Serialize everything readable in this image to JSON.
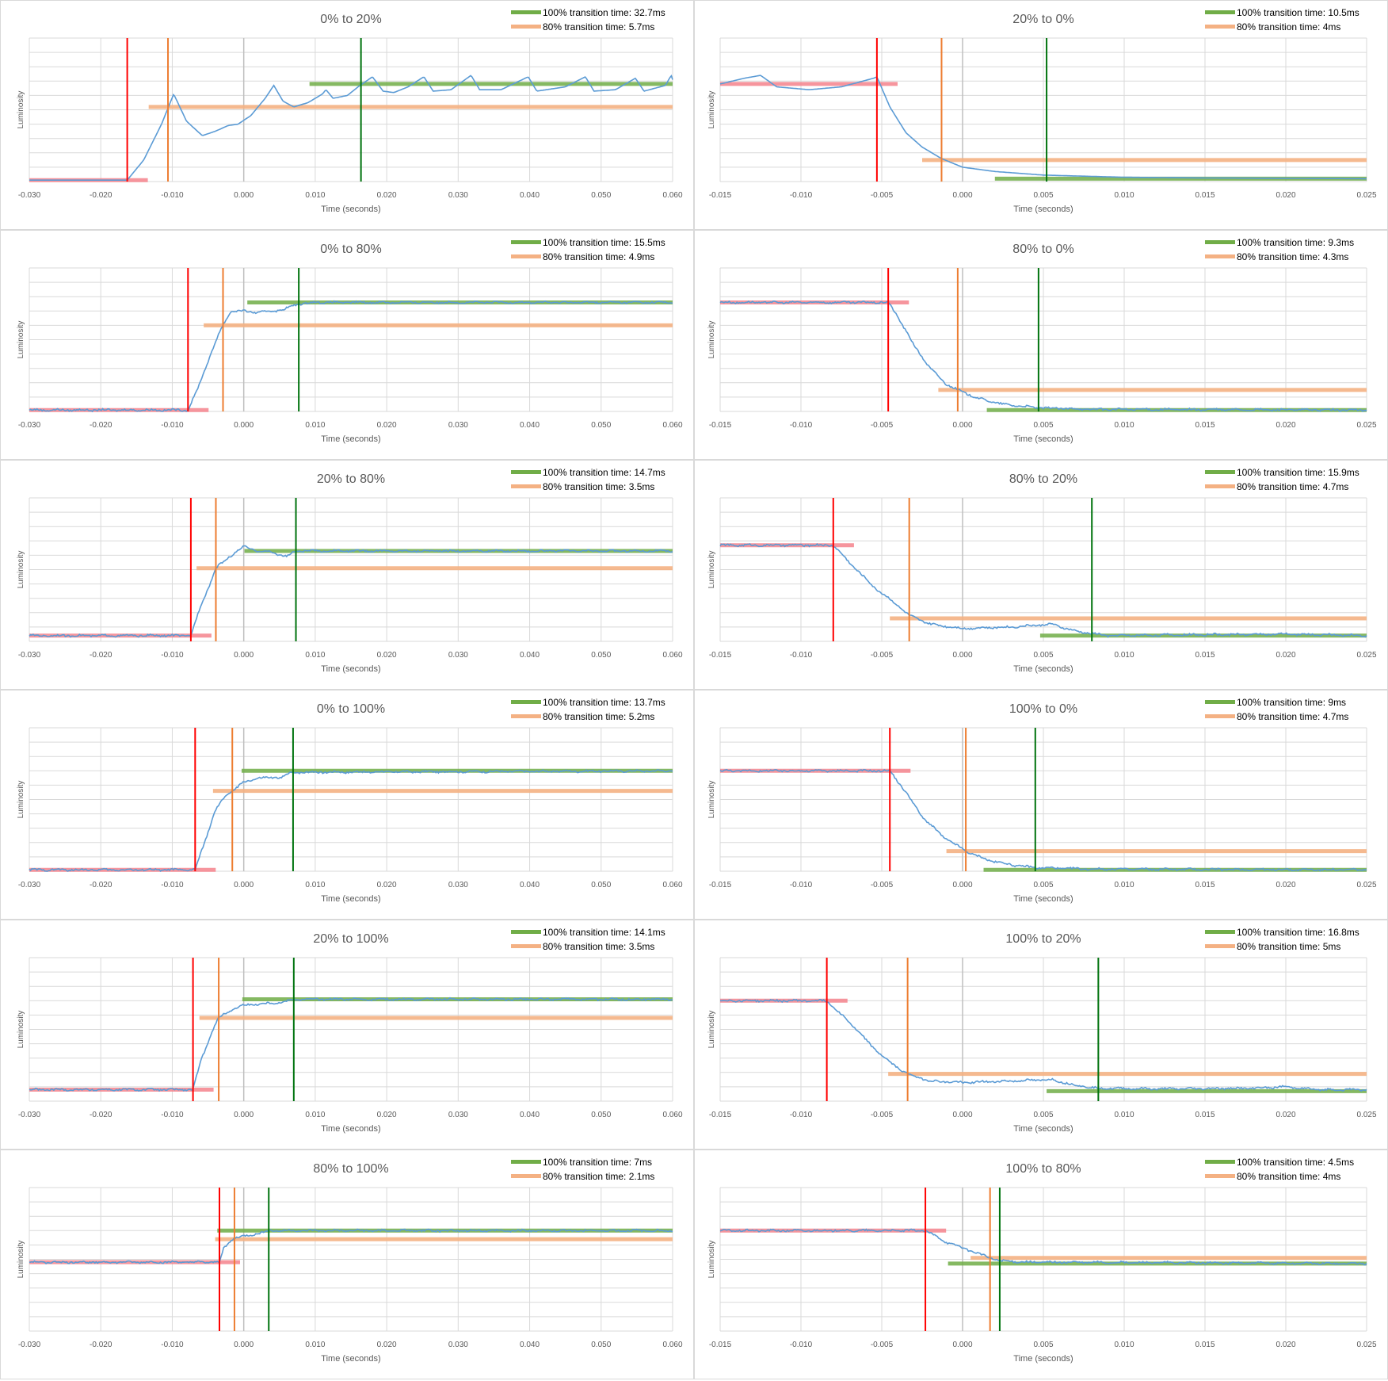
{
  "colors": {
    "trace": "#5b9bd5",
    "trace_flat": "#3f6e55",
    "legend_100": "#70ad47",
    "legend_80": "#f4b183",
    "vline_start": "#ff0000",
    "vline_80": "#ed7d31",
    "vline_100": "#00730e",
    "band_start": "#f4828c",
    "grid": "#d9d9d9",
    "zero_line": "#bfbfbf"
  },
  "chart_data": [
    {
      "type": "line",
      "title": "0% to 20%",
      "xlabel": "Time (seconds)",
      "ylabel": "Luminosity",
      "legend": [
        "100% transition time: 32.7ms",
        "80% transition time: 5.7ms"
      ],
      "xlim": [
        -0.03,
        0.06
      ],
      "x_ticks": [
        "-0.030",
        "-0.020",
        "-0.010",
        "0.000",
        "0.010",
        "0.020",
        "0.030",
        "0.040",
        "0.050",
        "0.060"
      ],
      "ylim": [
        0,
        10
      ],
      "grid": true,
      "legend_position": "top-right",
      "start_level": 0.1,
      "end_level": 6.8,
      "level_80": 5.2,
      "t_start": -0.0163,
      "t_80": -0.0106,
      "t_100": 0.0164,
      "noisy": false,
      "trace": [
        [
          -0.03,
          0.1
        ],
        [
          -0.0163,
          0.1
        ],
        [
          -0.014,
          1.5
        ],
        [
          -0.0115,
          4.0
        ],
        [
          -0.0098,
          6.1
        ],
        [
          -0.008,
          4.2
        ],
        [
          -0.0058,
          3.2
        ],
        [
          -0.004,
          3.5
        ],
        [
          -0.0022,
          3.9
        ],
        [
          -0.0008,
          4.0
        ],
        [
          0.001,
          4.6
        ],
        [
          0.003,
          5.8
        ],
        [
          0.0042,
          6.7
        ],
        [
          0.0055,
          5.6
        ],
        [
          0.007,
          5.2
        ],
        [
          0.009,
          5.5
        ],
        [
          0.011,
          6.1
        ],
        [
          0.0115,
          6.4
        ],
        [
          0.0125,
          5.8
        ],
        [
          0.0145,
          6.0
        ],
        [
          0.016,
          6.6
        ],
        [
          0.018,
          7.3
        ],
        [
          0.0195,
          6.3
        ],
        [
          0.021,
          6.2
        ],
        [
          0.023,
          6.6
        ],
        [
          0.0252,
          7.3
        ],
        [
          0.0265,
          6.3
        ],
        [
          0.029,
          6.4
        ],
        [
          0.0318,
          7.4
        ],
        [
          0.033,
          6.4
        ],
        [
          0.036,
          6.4
        ],
        [
          0.0398,
          7.3
        ],
        [
          0.041,
          6.3
        ],
        [
          0.045,
          6.6
        ],
        [
          0.0478,
          7.3
        ],
        [
          0.049,
          6.3
        ],
        [
          0.052,
          6.4
        ],
        [
          0.0548,
          7.2
        ],
        [
          0.056,
          6.3
        ],
        [
          0.059,
          6.7
        ],
        [
          0.0598,
          7.4
        ],
        [
          0.06,
          7.1
        ]
      ]
    },
    {
      "type": "line",
      "title": "20% to 0%",
      "xlabel": "Time (seconds)",
      "ylabel": "Luminosity",
      "legend": [
        "100% transition time: 10.5ms",
        "80% transition time: 4ms"
      ],
      "xlim": [
        -0.015,
        0.025
      ],
      "x_ticks": [
        "-0.015",
        "-0.010",
        "-0.005",
        "0.000",
        "0.005",
        "0.010",
        "0.015",
        "0.020",
        "0.025"
      ],
      "ylim": [
        0,
        10
      ],
      "grid": true,
      "legend_position": "top-right",
      "start_level": 6.8,
      "end_level": 0.2,
      "level_80": 1.5,
      "t_start": -0.0053,
      "t_80": -0.0013,
      "t_100": 0.0052,
      "noisy": false,
      "trace": [
        [
          -0.015,
          6.8
        ],
        [
          -0.0135,
          7.2
        ],
        [
          -0.0125,
          7.4
        ],
        [
          -0.0115,
          6.6
        ],
        [
          -0.0095,
          6.4
        ],
        [
          -0.0075,
          6.6
        ],
        [
          -0.0055,
          7.2
        ],
        [
          -0.0053,
          7.3
        ],
        [
          -0.0045,
          5.2
        ],
        [
          -0.0035,
          3.4
        ],
        [
          -0.0025,
          2.4
        ],
        [
          -0.0013,
          1.6
        ],
        [
          0.0,
          1.0
        ],
        [
          0.002,
          0.7
        ],
        [
          0.005,
          0.45
        ],
        [
          0.01,
          0.3
        ],
        [
          0.015,
          0.25
        ],
        [
          0.025,
          0.2
        ]
      ]
    },
    {
      "type": "line",
      "title": "0% to 80%",
      "xlabel": "Time (seconds)",
      "ylabel": "Luminosity",
      "legend": [
        "100% transition time: 15.5ms",
        "80% transition time: 4.9ms"
      ],
      "xlim": [
        -0.03,
        0.06
      ],
      "x_ticks": [
        "-0.030",
        "-0.020",
        "-0.010",
        "0.000",
        "0.010",
        "0.020",
        "0.030",
        "0.040",
        "0.050",
        "0.060"
      ],
      "ylim": [
        0,
        10
      ],
      "grid": true,
      "legend_position": "top-right",
      "start_level": 0.1,
      "end_level": 7.6,
      "level_80": 6.0,
      "t_start": -0.0078,
      "t_80": -0.0029,
      "t_100": 0.0077,
      "noisy": true,
      "trace": [
        [
          -0.03,
          0.1
        ],
        [
          -0.0078,
          0.1
        ],
        [
          -0.0065,
          1.5
        ],
        [
          -0.005,
          3.5
        ],
        [
          -0.0035,
          5.4
        ],
        [
          -0.0029,
          6.0
        ],
        [
          -0.0018,
          7.0
        ],
        [
          -0.0005,
          7.0
        ],
        [
          0.002,
          6.9
        ],
        [
          0.004,
          7.0
        ],
        [
          0.0055,
          7.1
        ],
        [
          0.0077,
          7.5
        ],
        [
          0.01,
          7.6
        ],
        [
          0.06,
          7.6
        ]
      ]
    },
    {
      "type": "line",
      "title": "80% to 0%",
      "xlabel": "Time (seconds)",
      "ylabel": "Luminosity",
      "legend": [
        "100% transition time: 9.3ms",
        "80% transition time: 4.3ms"
      ],
      "xlim": [
        -0.015,
        0.025
      ],
      "x_ticks": [
        "-0.015",
        "-0.010",
        "-0.005",
        "0.000",
        "0.005",
        "0.010",
        "0.015",
        "0.020",
        "0.025"
      ],
      "ylim": [
        0,
        10
      ],
      "grid": true,
      "legend_position": "top-right",
      "start_level": 7.6,
      "end_level": 0.1,
      "level_80": 1.5,
      "t_start": -0.0046,
      "t_80": -0.0003,
      "t_100": 0.0047,
      "noisy": true,
      "trace": [
        [
          -0.015,
          7.6
        ],
        [
          -0.0046,
          7.6
        ],
        [
          -0.004,
          6.6
        ],
        [
          -0.003,
          4.6
        ],
        [
          -0.002,
          3.0
        ],
        [
          -0.001,
          1.9
        ],
        [
          -0.0003,
          1.5
        ],
        [
          0.001,
          0.9
        ],
        [
          0.0025,
          0.5
        ],
        [
          0.0047,
          0.25
        ],
        [
          0.008,
          0.15
        ],
        [
          0.025,
          0.1
        ]
      ]
    },
    {
      "type": "line",
      "title": "20% to 80%",
      "xlabel": "Time (seconds)",
      "ylabel": "Luminosity",
      "legend": [
        "100% transition time: 14.7ms",
        "80% transition time: 3.5ms"
      ],
      "xlim": [
        -0.03,
        0.06
      ],
      "x_ticks": [
        "-0.030",
        "-0.020",
        "-0.010",
        "0.000",
        "0.010",
        "0.020",
        "0.030",
        "0.040",
        "0.050",
        "0.060"
      ],
      "ylim": [
        0,
        10
      ],
      "grid": true,
      "legend_position": "top-right",
      "start_level": 0.4,
      "end_level": 6.3,
      "level_80": 5.1,
      "t_start": -0.0074,
      "t_80": -0.0039,
      "t_100": 0.0073,
      "noisy": true,
      "trace": [
        [
          -0.03,
          0.4
        ],
        [
          -0.0074,
          0.4
        ],
        [
          -0.006,
          2.5
        ],
        [
          -0.0045,
          4.3
        ],
        [
          -0.0039,
          5.1
        ],
        [
          -0.002,
          5.9
        ],
        [
          0.0,
          6.6
        ],
        [
          0.002,
          6.3
        ],
        [
          0.004,
          6.2
        ],
        [
          0.006,
          5.9
        ],
        [
          0.0073,
          6.3
        ],
        [
          0.06,
          6.3
        ]
      ]
    },
    {
      "type": "line",
      "title": "80% to 20%",
      "xlabel": "Time (seconds)",
      "ylabel": "Luminosity",
      "legend": [
        "100% transition time: 15.9ms",
        "80% transition time: 4.7ms"
      ],
      "xlim": [
        -0.015,
        0.025
      ],
      "x_ticks": [
        "-0.015",
        "-0.010",
        "-0.005",
        "0.000",
        "0.005",
        "0.010",
        "0.015",
        "0.020",
        "0.025"
      ],
      "ylim": [
        0,
        10
      ],
      "grid": true,
      "legend_position": "top-right",
      "start_level": 6.7,
      "end_level": 0.4,
      "level_80": 1.6,
      "t_start": -0.008,
      "t_80": -0.0033,
      "t_100": 0.008,
      "noisy": true,
      "trace": [
        [
          -0.015,
          6.7
        ],
        [
          -0.008,
          6.7
        ],
        [
          -0.007,
          5.5
        ],
        [
          -0.0055,
          3.8
        ],
        [
          -0.004,
          2.5
        ],
        [
          -0.0033,
          1.8
        ],
        [
          -0.002,
          1.2
        ],
        [
          0.0,
          0.9
        ],
        [
          0.003,
          1.0
        ],
        [
          0.0055,
          1.2
        ],
        [
          0.007,
          0.7
        ],
        [
          0.009,
          0.4
        ],
        [
          0.013,
          0.45
        ],
        [
          0.02,
          0.5
        ],
        [
          0.025,
          0.4
        ]
      ]
    },
    {
      "type": "line",
      "title": "0% to 100%",
      "xlabel": "Time (seconds)",
      "ylabel": "Luminosity",
      "legend": [
        "100% transition time: 13.7ms",
        "80% transition time: 5.2ms"
      ],
      "xlim": [
        -0.03,
        0.06
      ],
      "x_ticks": [
        "-0.030",
        "-0.020",
        "-0.010",
        "0.000",
        "0.010",
        "0.020",
        "0.030",
        "0.040",
        "0.050",
        "0.060"
      ],
      "ylim": [
        0,
        10
      ],
      "grid": true,
      "legend_position": "top-right",
      "start_level": 0.1,
      "end_level": 7.0,
      "level_80": 5.6,
      "t_start": -0.0068,
      "t_80": -0.0016,
      "t_100": 0.0069,
      "noisy": true,
      "trace": [
        [
          -0.03,
          0.1
        ],
        [
          -0.0068,
          0.1
        ],
        [
          -0.0055,
          2.0
        ],
        [
          -0.004,
          4.2
        ],
        [
          -0.0025,
          5.3
        ],
        [
          -0.0016,
          5.6
        ],
        [
          0.0,
          6.2
        ],
        [
          0.002,
          6.5
        ],
        [
          0.004,
          6.5
        ],
        [
          0.0055,
          6.6
        ],
        [
          0.0069,
          6.9
        ],
        [
          0.06,
          7.0
        ]
      ]
    },
    {
      "type": "line",
      "title": "100% to 0%",
      "xlabel": "Time (seconds)",
      "ylabel": "Luminosity",
      "legend": [
        "100% transition time: 9ms",
        "80% transition time: 4.7ms"
      ],
      "xlim": [
        -0.015,
        0.025
      ],
      "x_ticks": [
        "-0.015",
        "-0.010",
        "-0.005",
        "0.000",
        "0.005",
        "0.010",
        "0.015",
        "0.020",
        "0.025"
      ],
      "ylim": [
        0,
        10
      ],
      "grid": true,
      "legend_position": "top-right",
      "start_level": 7.0,
      "end_level": 0.1,
      "level_80": 1.4,
      "t_start": -0.0045,
      "t_80": 0.0002,
      "t_100": 0.0045,
      "noisy": true,
      "trace": [
        [
          -0.015,
          7.0
        ],
        [
          -0.0045,
          7.0
        ],
        [
          -0.0035,
          5.5
        ],
        [
          -0.0025,
          3.8
        ],
        [
          -0.0012,
          2.4
        ],
        [
          0.0002,
          1.4
        ],
        [
          0.0015,
          0.8
        ],
        [
          0.003,
          0.45
        ],
        [
          0.0045,
          0.25
        ],
        [
          0.008,
          0.15
        ],
        [
          0.025,
          0.1
        ]
      ]
    },
    {
      "type": "line",
      "title": "20% to 100%",
      "xlabel": "Time (seconds)",
      "ylabel": "Luminosity",
      "legend": [
        "100% transition time: 14.1ms",
        "80% transition time: 3.5ms"
      ],
      "xlim": [
        -0.03,
        0.06
      ],
      "x_ticks": [
        "-0.030",
        "-0.020",
        "-0.010",
        "0.000",
        "0.010",
        "0.020",
        "0.030",
        "0.040",
        "0.050",
        "0.060"
      ],
      "ylim": [
        0,
        10
      ],
      "grid": true,
      "legend_position": "top-right",
      "start_level": 0.8,
      "end_level": 7.1,
      "level_80": 5.8,
      "t_start": -0.0071,
      "t_80": -0.0035,
      "t_100": 0.007,
      "noisy": true,
      "trace": [
        [
          -0.03,
          0.8
        ],
        [
          -0.0071,
          0.8
        ],
        [
          -0.006,
          2.8
        ],
        [
          -0.0045,
          4.8
        ],
        [
          -0.0035,
          5.8
        ],
        [
          -0.002,
          6.3
        ],
        [
          0.0,
          6.7
        ],
        [
          0.003,
          6.8
        ],
        [
          0.0055,
          6.9
        ],
        [
          0.007,
          7.1
        ],
        [
          0.06,
          7.1
        ]
      ]
    },
    {
      "type": "line",
      "title": "100% to 20%",
      "xlabel": "Time (seconds)",
      "ylabel": "Luminosity",
      "legend": [
        "100% transition time: 16.8ms",
        "80% transition time: 5ms"
      ],
      "xlim": [
        -0.015,
        0.025
      ],
      "x_ticks": [
        "-0.015",
        "-0.010",
        "-0.005",
        "0.000",
        "0.005",
        "0.010",
        "0.015",
        "0.020",
        "0.025"
      ],
      "ylim": [
        0,
        10
      ],
      "grid": true,
      "legend_position": "top-right",
      "start_level": 7.0,
      "end_level": 0.7,
      "level_80": 1.9,
      "t_start": -0.0084,
      "t_80": -0.0034,
      "t_100": 0.0084,
      "noisy": true,
      "trace": [
        [
          -0.015,
          7.0
        ],
        [
          -0.0084,
          7.0
        ],
        [
          -0.007,
          5.5
        ],
        [
          -0.0055,
          3.7
        ],
        [
          -0.0045,
          2.7
        ],
        [
          -0.0034,
          1.9
        ],
        [
          -0.002,
          1.4
        ],
        [
          0.0,
          1.3
        ],
        [
          0.003,
          1.4
        ],
        [
          0.0055,
          1.5
        ],
        [
          0.007,
          1.1
        ],
        [
          0.0084,
          0.9
        ],
        [
          0.012,
          0.85
        ],
        [
          0.018,
          0.9
        ],
        [
          0.02,
          1.0
        ],
        [
          0.022,
          0.8
        ],
        [
          0.025,
          0.8
        ]
      ]
    },
    {
      "type": "line",
      "title": "80% to 100%",
      "xlabel": "Time (seconds)",
      "ylabel": "Luminosity",
      "legend": [
        "100% transition time: 7ms",
        "80% transition time: 2.1ms"
      ],
      "xlim": [
        -0.03,
        0.06
      ],
      "x_ticks": [
        "-0.030",
        "-0.020",
        "-0.010",
        "0.000",
        "0.010",
        "0.020",
        "0.030",
        "0.040",
        "0.050",
        "0.060"
      ],
      "ylim": [
        0,
        10
      ],
      "grid": true,
      "legend_position": "top-right",
      "start_level": 4.8,
      "end_level": 7.0,
      "level_80": 6.4,
      "t_start": -0.0034,
      "t_80": -0.0013,
      "t_100": 0.0035,
      "noisy": true,
      "trace": [
        [
          -0.03,
          4.8
        ],
        [
          -0.0034,
          4.8
        ],
        [
          -0.0028,
          5.8
        ],
        [
          -0.002,
          6.2
        ],
        [
          -0.0013,
          6.5
        ],
        [
          0.0,
          6.6
        ],
        [
          0.002,
          6.8
        ],
        [
          0.0035,
          7.0
        ],
        [
          0.06,
          7.0
        ]
      ]
    },
    {
      "type": "line",
      "title": "100% to 80%",
      "xlabel": "Time (seconds)",
      "ylabel": "Luminosity",
      "legend": [
        "100% transition time: 4.5ms",
        "80% transition time: 4ms"
      ],
      "xlim": [
        -0.015,
        0.025
      ],
      "x_ticks": [
        "-0.015",
        "-0.010",
        "-0.005",
        "0.000",
        "0.005",
        "0.010",
        "0.015",
        "0.020",
        "0.025"
      ],
      "ylim": [
        0,
        10
      ],
      "grid": true,
      "legend_position": "top-right",
      "start_level": 7.0,
      "end_level": 4.7,
      "level_80": 5.1,
      "t_start": -0.0023,
      "t_80": 0.0017,
      "t_100": 0.0023,
      "noisy": true,
      "trace": [
        [
          -0.015,
          7.0
        ],
        [
          -0.0023,
          7.0
        ],
        [
          -0.001,
          6.2
        ],
        [
          0.0005,
          5.6
        ],
        [
          0.0017,
          5.1
        ],
        [
          0.0023,
          4.9
        ],
        [
          0.004,
          4.8
        ],
        [
          0.025,
          4.7
        ]
      ]
    }
  ]
}
